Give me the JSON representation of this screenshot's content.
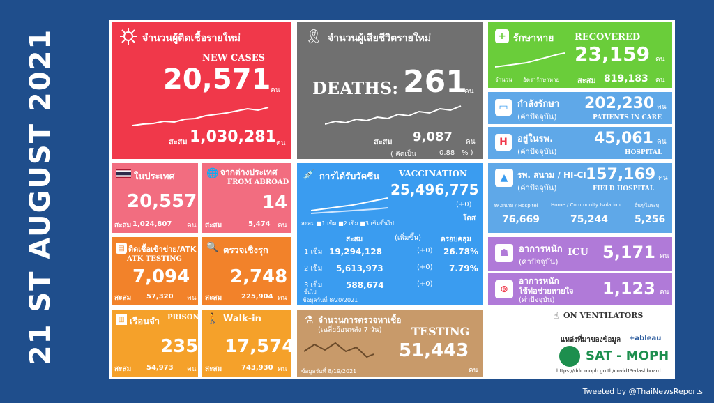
{
  "date_banner": "21 ST AUGUST 2021",
  "new_cases": {
    "th_title": "จำนวนผู้ติดเชื้อรายใหม่",
    "en_title": "NEW CASES",
    "value": "20,571",
    "unit": "คน",
    "cum_label": "สะสม",
    "cum_value": "1,030,281",
    "cum_unit": "คน"
  },
  "deaths": {
    "th_title": "จำนวนผู้เสียชีวิตรายใหม่",
    "en_label": "DEATHS:",
    "value": "261",
    "unit": "คน",
    "cum_label": "สะสม",
    "cum_value": "9,087",
    "cum_unit": "คน",
    "rate_label": "( คิดเป็น",
    "rate_value": "0.88",
    "rate_unit": "% )"
  },
  "recovered": {
    "th_title": "รักษาหาย",
    "en_title": "RECOVERED",
    "value": "23,159",
    "unit": "คน",
    "legend_a": "จำนวน",
    "legend_b": "อัตรารักษาหาย",
    "cum_label": "สะสม",
    "cum_value": "819,183",
    "cum_unit": "คน"
  },
  "in_care": {
    "th_title": "กำลังรักษา",
    "th_sub": "(ค่าปัจจุบัน)",
    "value": "202,230",
    "unit": "คน",
    "en_title": "PATIENTS IN CARE"
  },
  "hospital": {
    "th_title": "อยู่ในรพ.",
    "th_sub": "(ค่าปัจจุบัน)",
    "value": "45,061",
    "unit": "คน",
    "en_title": "HOSPITAL"
  },
  "field_hospital": {
    "th_title": "รพ. สนาม / HI-CI",
    "th_sub": "(ค่าปัจจุบัน)",
    "value": "157,169",
    "unit": "คน",
    "en_title": "FIELD HOSPITAL",
    "col1_label": "รพ.สนาม / Hospitel",
    "col1_value": "76,669",
    "col2_label": "Home / Community Isolation",
    "col2_value": "75,244",
    "col3_label": "อื่นๆ/ไประบุ",
    "col3_value": "5,256"
  },
  "icu": {
    "th_title": "อาการหนัก",
    "th_sub": "(ค่าปัจจุบัน)",
    "en_title": "ICU",
    "value": "5,171",
    "unit": "คน"
  },
  "ventilator": {
    "th_title": "อาการหนัก",
    "th_sub1": "ใช้ท่อช่วยหายใจ",
    "th_sub2": "(ค่าปัจจุบัน)",
    "value": "1,123",
    "unit": "คน",
    "en_title": "ON VENTILATORS"
  },
  "domestic": {
    "th_title": "ในประเทศ",
    "value": "20,557",
    "cum_label": "สะสม",
    "cum_value": "1,024,807",
    "cum_unit": "คน"
  },
  "abroad": {
    "th_title": "จากต่างประเทศ",
    "en_title": "FROM ABROAD",
    "value": "14",
    "cum_label": "สะสม",
    "cum_value": "5,474",
    "cum_unit": "คน"
  },
  "atk": {
    "th_title": "ติดเชื้อเข้าข่าย/ATK",
    "en_title": "ATK TESTING",
    "value": "7,094",
    "cum_label": "สะสม",
    "cum_value": "57,320",
    "cum_unit": "คน"
  },
  "proactive": {
    "th_title": "ตรวจเชิงรุก",
    "value": "2,748",
    "cum_label": "สะสม",
    "cum_value": "225,904",
    "cum_unit": "คน"
  },
  "prison": {
    "th_title": "เรือนจำ",
    "en_title": "PRISON",
    "value": "235",
    "cum_label": "สะสม",
    "cum_value": "54,973",
    "cum_unit": "คน"
  },
  "walkin": {
    "th_title": "Walk-in",
    "value": "17,574",
    "cum_label": "สะสม",
    "cum_value": "743,930",
    "cum_unit": "คน"
  },
  "vaccination": {
    "th_title": "การได้รับวัคซีน",
    "en_title": "VACCINATION",
    "value": "25,496,775",
    "change": "(+0)",
    "unit": "โดส",
    "legend": "สะสม  ■1 เข็ม ■2 เข็ม ■3 เข็มขึ้นไป",
    "col_cum": "สะสม",
    "col_inc": "(เพิ่มขึ้น)",
    "col_cov": "ครอบคลุม",
    "rows": [
      {
        "dose": "1 เข็ม",
        "cum": "19,294,128",
        "inc": "(+0)",
        "cov": "26.78%"
      },
      {
        "dose": "2 เข็ม",
        "cum": "5,613,973",
        "inc": "(+0)",
        "cov": "7.79%"
      },
      {
        "dose": "3 เข็ม",
        "cum": "588,674",
        "inc": "(+0)",
        "cov": ""
      }
    ],
    "dose3_sub": "ขึ้นไป",
    "note": "ข้อมูลวันที่ 8/20/2021"
  },
  "testing": {
    "th_title": "จำนวนการตรวจหาเชื้อ",
    "th_sub": "(เฉลี่ยย้อนหลัง 7 วัน)",
    "en_title": "TESTING",
    "value": "51,443",
    "unit": "คน",
    "note": "ข้อมูลวันที่ 8/19/2021"
  },
  "source": {
    "th_label": "แหล่งที่มาของข้อมูล",
    "tableau": "+ableau",
    "brand": "SAT - MOPH",
    "url": "https://ddc.moph.go.th/covid19-dashboard"
  },
  "footer": "Tweeted by @ThaiNewsReports"
}
